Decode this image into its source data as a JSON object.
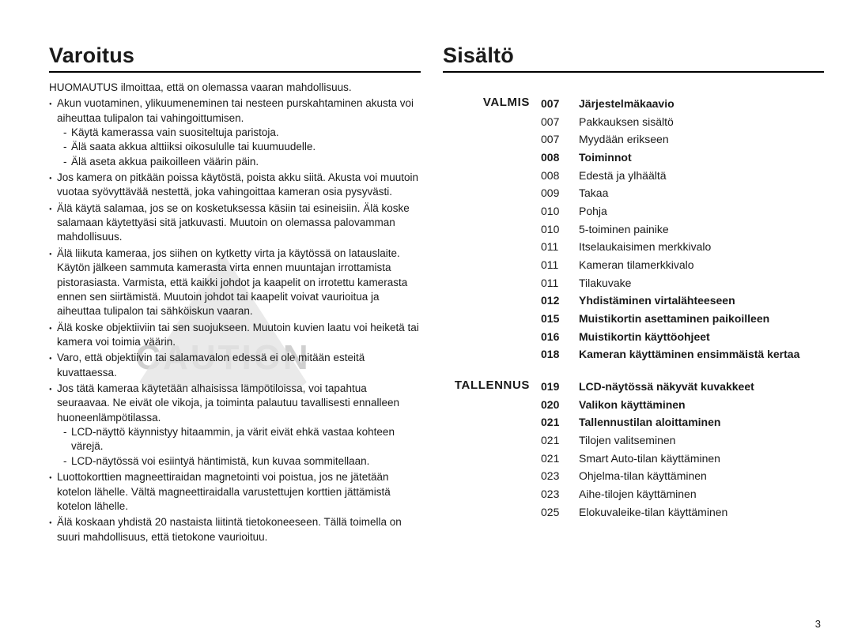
{
  "left": {
    "heading": "Varoitus",
    "intro": "HUOMAUTUS ilmoittaa, että on olemassa vaaran mahdollisuus.",
    "bullets": [
      {
        "text": "Akun vuotaminen, ylikuumeneminen tai nesteen purskahtaminen akusta voi aiheuttaa tulipalon tai vahingoittumisen.",
        "sub": [
          "Käytä kamerassa vain suositeltuja paristoja.",
          "Älä saata akkua alttiiksi oikosululle tai kuumuudelle.",
          "Älä aseta akkua paikoilleen väärin päin."
        ]
      },
      {
        "text": "Jos kamera on pitkään poissa käytöstä, poista akku siitä. Akusta voi muutoin vuotaa syövyttävää nestettä, joka vahingoittaa kameran osia pysyvästi."
      },
      {
        "text": "Älä käytä salamaa, jos se on kosketuksessa käsiin tai esineisiin. Älä koske salamaan käytettyäsi sitä jatkuvasti. Muutoin on olemassa palovamman mahdollisuus."
      },
      {
        "text": "Älä liikuta kameraa, jos siihen on kytketty virta ja käytössä on latauslaite. Käytön jälkeen sammuta kamerasta virta ennen muuntajan irrottamista pistorasiasta. Varmista, että kaikki johdot ja kaapelit on irrotettu kamerasta ennen sen siirtämistä. Muutoin johdot tai kaapelit voivat vaurioitua ja aiheuttaa tulipalon tai sähköiskun vaaran."
      },
      {
        "text": "Älä koske objektiiviin tai sen suojukseen. Muutoin kuvien laatu voi heiketä tai kamera voi toimia väärin."
      },
      {
        "text": "Varo, että objektiivin tai salamavalon edessä ei ole mitään esteitä kuvattaessa."
      },
      {
        "text": "Jos tätä kameraa käytetään alhaisissa lämpötiloissa, voi tapahtua seuraavaa. Ne eivät ole vikoja, ja toiminta palautuu tavallisesti ennalleen huoneenlämpötilassa.",
        "sub": [
          "LCD-näyttö käynnistyy hitaammin, ja värit eivät ehkä vastaa kohteen värejä.",
          "LCD-näytössä voi esiintyä häntimistä, kun kuvaa sommitellaan."
        ]
      },
      {
        "text": "Luottokorttien magneettiraidan magnetointi voi poistua, jos ne jätetään kotelon lähelle. Vältä magneettiraidalla varustettujen korttien jättämistä kotelon lähelle."
      },
      {
        "text": "Älä koskaan yhdistä 20 nastaista liitintä tietokoneeseen. Tällä toimella on suuri mahdollisuus, että tietokone vaurioituu."
      }
    ]
  },
  "right": {
    "heading": "Sisältö",
    "sections": [
      {
        "label": "VALMIS",
        "entries": [
          {
            "num": "007",
            "title": "Järjestelmäkaavio",
            "bold": true
          },
          {
            "num": "007",
            "title": "Pakkauksen sisältö"
          },
          {
            "num": "007",
            "title": "Myydään erikseen"
          },
          {
            "num": "008",
            "title": "Toiminnot",
            "bold": true
          },
          {
            "num": "008",
            "title": "Edestä ja ylhäältä"
          },
          {
            "num": "009",
            "title": "Takaa"
          },
          {
            "num": "010",
            "title": "Pohja"
          },
          {
            "num": "010",
            "title": "5-toiminen painike"
          },
          {
            "num": "011",
            "title": "Itselaukaisimen merkkivalo"
          },
          {
            "num": "011",
            "title": "Kameran tilamerkkivalo"
          },
          {
            "num": "011",
            "title": "Tilakuvake"
          },
          {
            "num": "012",
            "title": "Yhdistäminen virtalähteeseen",
            "bold": true
          },
          {
            "num": "015",
            "title": "Muistikortin asettaminen paikoilleen",
            "bold": true
          },
          {
            "num": "016",
            "title": "Muistikortin käyttöohjeet",
            "bold": true
          },
          {
            "num": "018",
            "title": "Kameran käyttäminen ensimmäistä kertaa",
            "bold": true
          }
        ]
      },
      {
        "label": "TALLENNUS",
        "entries": [
          {
            "num": "019",
            "title": "LCD-näytössä näkyvät kuvakkeet",
            "bold": true
          },
          {
            "num": "020",
            "title": "Valikon käyttäminen",
            "bold": true
          },
          {
            "num": "021",
            "title": "Tallennustilan aloittaminen",
            "bold": true
          },
          {
            "num": "021",
            "title": "Tilojen valitseminen"
          },
          {
            "num": "021",
            "title": "Smart Auto-tilan käyttäminen"
          },
          {
            "num": "023",
            "title": "Ohjelma-tilan käyttäminen"
          },
          {
            "num": "023",
            "title": "Aihe-tilojen käyttäminen"
          },
          {
            "num": "025",
            "title": "Elokuvaleike-tilan käyttäminen"
          }
        ]
      }
    ]
  },
  "watermark": "CAUTION",
  "page_number": "3"
}
